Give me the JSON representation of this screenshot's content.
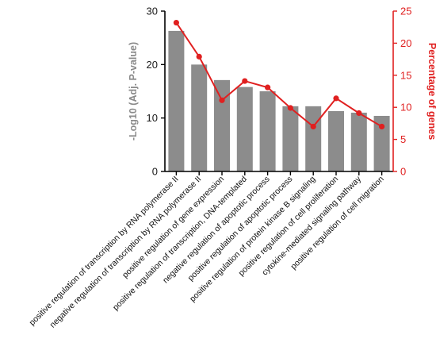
{
  "chart_data": {
    "type": "bar",
    "categories": [
      "positive regulation of transcription by RNA polymerase II",
      "negative regulation of transcription by RNA polymerase II",
      "positive regulation of gene expression",
      "positive regulation of transcription, DNA-templated",
      "negative regulation of apoptotic process",
      "positive regulation of apoptotic process",
      "positive regulation of protein kinase B signaling",
      "positive regulation of cell proliferation",
      "cytokine-mediated signaling pathway",
      "positive regulation of cell migration"
    ],
    "series": [
      {
        "type": "bar",
        "axis": "left",
        "color": "#8c8c8c",
        "values": [
          26.3,
          20.0,
          17.1,
          15.8,
          15.0,
          12.2,
          12.2,
          11.3,
          11.0,
          10.4
        ]
      },
      {
        "type": "line",
        "axis": "right",
        "color": "#e02020",
        "values": [
          23.2,
          17.9,
          11.1,
          14.1,
          13.1,
          9.9,
          7.0,
          11.4,
          9.1,
          7.0
        ]
      }
    ],
    "title": "",
    "xlabel": "",
    "ylabel": "-Log10 (Adj. P-value)",
    "ylabel_right": "Percentage of genes",
    "ylim": [
      0,
      30
    ],
    "ylim_right": [
      0,
      25
    ],
    "yticks": [
      "0",
      "10",
      "20",
      "30"
    ],
    "yticks_right": [
      "0",
      "5",
      "10",
      "15",
      "20",
      "25"
    ],
    "grid": false,
    "legend": "none"
  }
}
